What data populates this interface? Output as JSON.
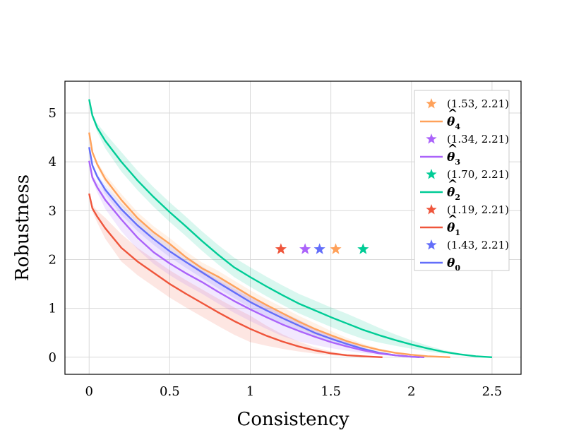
{
  "chart_data": {
    "type": "line",
    "title": "",
    "xlabel": "Consistency",
    "ylabel": "Robustness",
    "xlim": [
      -0.15,
      2.68
    ],
    "ylim": [
      -0.35,
      5.65
    ],
    "grid": true,
    "xticks": [
      0,
      0.5,
      1,
      1.5,
      2,
      2.5
    ],
    "xtick_labels": [
      "0",
      "0.5",
      "1",
      "1.5",
      "2",
      "2.5"
    ],
    "yticks": [
      0,
      1,
      2,
      3,
      4,
      5
    ],
    "ytick_labels": [
      "0",
      "1",
      "2",
      "3",
      "4",
      "5"
    ],
    "legend_position": "top-right",
    "series": [
      {
        "name": "θ0",
        "label_base": "θ",
        "label_sub": "0",
        "hat": false,
        "color": "#636EFA",
        "star": {
          "x": 1.43,
          "y": 2.21,
          "label": "(1.43, 2.21)"
        },
        "band": 0.12,
        "points": [
          [
            0,
            4.3
          ],
          [
            0.02,
            3.93
          ],
          [
            0.05,
            3.7
          ],
          [
            0.1,
            3.43
          ],
          [
            0.2,
            3.03
          ],
          [
            0.3,
            2.7
          ],
          [
            0.4,
            2.42
          ],
          [
            0.5,
            2.17
          ],
          [
            0.6,
            1.95
          ],
          [
            0.7,
            1.74
          ],
          [
            0.8,
            1.53
          ],
          [
            0.9,
            1.33
          ],
          [
            1.0,
            1.13
          ],
          [
            1.1,
            0.96
          ],
          [
            1.2,
            0.8
          ],
          [
            1.3,
            0.65
          ],
          [
            1.4,
            0.5
          ],
          [
            1.5,
            0.38
          ],
          [
            1.6,
            0.27
          ],
          [
            1.7,
            0.17
          ],
          [
            1.8,
            0.09
          ],
          [
            1.9,
            0.04
          ],
          [
            2.0,
            0.01
          ],
          [
            2.05,
            0.0
          ]
        ]
      },
      {
        "name": "θ̂1",
        "label_base": "θ",
        "label_sub": "1",
        "hat": true,
        "color": "#EF553B",
        "star": {
          "x": 1.19,
          "y": 2.21,
          "label": "(1.19, 2.21)"
        },
        "band": 0.28,
        "points": [
          [
            0,
            3.35
          ],
          [
            0.02,
            3.05
          ],
          [
            0.05,
            2.88
          ],
          [
            0.1,
            2.64
          ],
          [
            0.2,
            2.24
          ],
          [
            0.3,
            1.96
          ],
          [
            0.4,
            1.73
          ],
          [
            0.5,
            1.5
          ],
          [
            0.6,
            1.3
          ],
          [
            0.7,
            1.11
          ],
          [
            0.8,
            0.92
          ],
          [
            0.9,
            0.74
          ],
          [
            1.0,
            0.58
          ],
          [
            1.1,
            0.44
          ],
          [
            1.2,
            0.32
          ],
          [
            1.3,
            0.22
          ],
          [
            1.4,
            0.14
          ],
          [
            1.5,
            0.08
          ],
          [
            1.6,
            0.04
          ],
          [
            1.7,
            0.02
          ],
          [
            1.82,
            0.0
          ]
        ]
      },
      {
        "name": "θ̂2",
        "label_base": "θ",
        "label_sub": "2",
        "hat": true,
        "color": "#00CC96",
        "star": {
          "x": 1.7,
          "y": 2.21,
          "label": "(1.70, 2.21)"
        },
        "band": 0.2,
        "points": [
          [
            0,
            5.28
          ],
          [
            0.02,
            4.95
          ],
          [
            0.05,
            4.7
          ],
          [
            0.1,
            4.43
          ],
          [
            0.2,
            4.0
          ],
          [
            0.3,
            3.62
          ],
          [
            0.4,
            3.28
          ],
          [
            0.5,
            2.97
          ],
          [
            0.6,
            2.68
          ],
          [
            0.7,
            2.38
          ],
          [
            0.8,
            2.1
          ],
          [
            0.9,
            1.84
          ],
          [
            1.0,
            1.64
          ],
          [
            1.1,
            1.45
          ],
          [
            1.2,
            1.27
          ],
          [
            1.3,
            1.1
          ],
          [
            1.4,
            0.96
          ],
          [
            1.5,
            0.82
          ],
          [
            1.6,
            0.69
          ],
          [
            1.7,
            0.56
          ],
          [
            1.8,
            0.45
          ],
          [
            1.9,
            0.35
          ],
          [
            2.0,
            0.26
          ],
          [
            2.1,
            0.18
          ],
          [
            2.2,
            0.11
          ],
          [
            2.3,
            0.06
          ],
          [
            2.4,
            0.02
          ],
          [
            2.5,
            0.0
          ]
        ]
      },
      {
        "name": "θ̂3",
        "label_base": "θ",
        "label_sub": "3",
        "hat": true,
        "color": "#AB63FA",
        "star": {
          "x": 1.34,
          "y": 2.21,
          "label": "(1.34, 2.21)"
        },
        "band": 0.24,
        "points": [
          [
            0,
            4.02
          ],
          [
            0.02,
            3.68
          ],
          [
            0.05,
            3.48
          ],
          [
            0.1,
            3.22
          ],
          [
            0.2,
            2.82
          ],
          [
            0.3,
            2.45
          ],
          [
            0.4,
            2.15
          ],
          [
            0.5,
            1.92
          ],
          [
            0.6,
            1.72
          ],
          [
            0.7,
            1.54
          ],
          [
            0.8,
            1.34
          ],
          [
            0.9,
            1.15
          ],
          [
            1.0,
            0.98
          ],
          [
            1.1,
            0.82
          ],
          [
            1.2,
            0.67
          ],
          [
            1.3,
            0.54
          ],
          [
            1.4,
            0.42
          ],
          [
            1.5,
            0.31
          ],
          [
            1.6,
            0.22
          ],
          [
            1.7,
            0.14
          ],
          [
            1.8,
            0.08
          ],
          [
            1.9,
            0.04
          ],
          [
            2.0,
            0.01
          ],
          [
            2.08,
            0.0
          ]
        ]
      },
      {
        "name": "θ̂4",
        "label_base": "θ",
        "label_sub": "4",
        "hat": true,
        "color": "#FFA15A",
        "star": {
          "x": 1.53,
          "y": 2.21,
          "label": "(1.53, 2.21)"
        },
        "band": 0.12,
        "points": [
          [
            0,
            4.6
          ],
          [
            0.02,
            4.2
          ],
          [
            0.05,
            3.95
          ],
          [
            0.1,
            3.65
          ],
          [
            0.2,
            3.22
          ],
          [
            0.3,
            2.85
          ],
          [
            0.4,
            2.56
          ],
          [
            0.5,
            2.32
          ],
          [
            0.6,
            2.05
          ],
          [
            0.7,
            1.82
          ],
          [
            0.8,
            1.65
          ],
          [
            0.9,
            1.45
          ],
          [
            1.0,
            1.25
          ],
          [
            1.1,
            1.07
          ],
          [
            1.2,
            0.9
          ],
          [
            1.3,
            0.73
          ],
          [
            1.4,
            0.58
          ],
          [
            1.5,
            0.45
          ],
          [
            1.6,
            0.33
          ],
          [
            1.7,
            0.23
          ],
          [
            1.8,
            0.15
          ],
          [
            1.9,
            0.09
          ],
          [
            2.0,
            0.05
          ],
          [
            2.1,
            0.02
          ],
          [
            2.24,
            0.0
          ]
        ]
      }
    ],
    "legend_order": [
      4,
      3,
      2,
      1,
      0
    ]
  }
}
